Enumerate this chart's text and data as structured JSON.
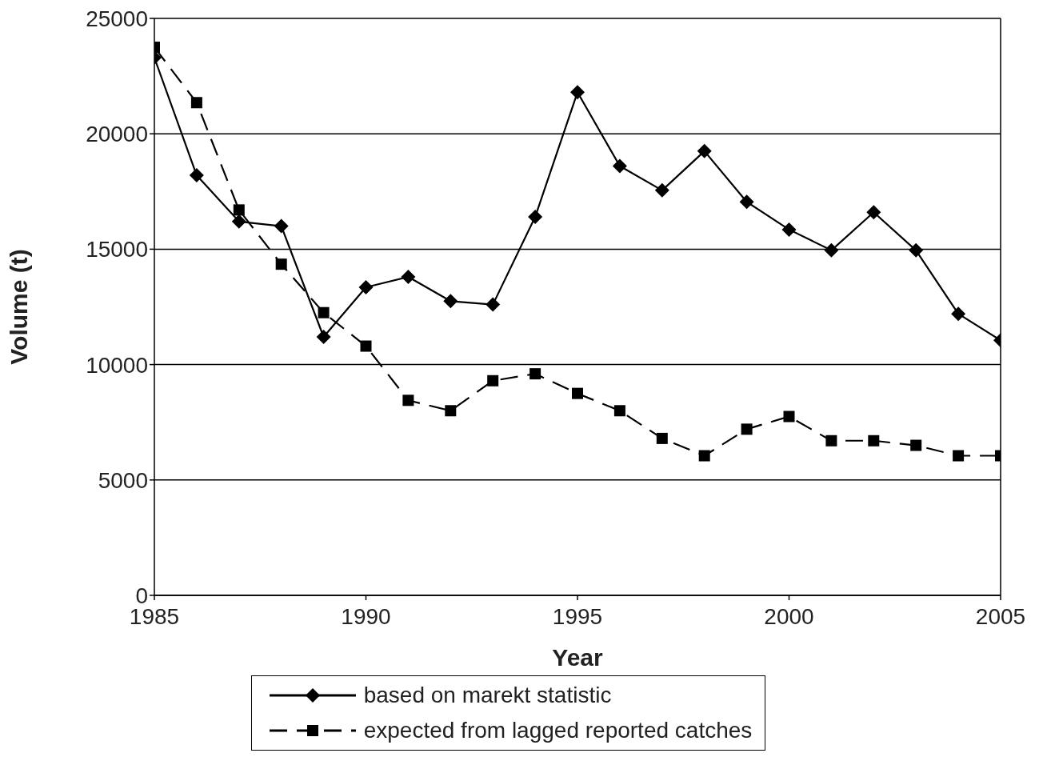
{
  "chart_data": {
    "type": "line",
    "xlabel": "Year",
    "ylabel": "Volume (t)",
    "x": [
      1985,
      1986,
      1987,
      1988,
      1989,
      1990,
      1991,
      1992,
      1993,
      1994,
      1995,
      1996,
      1997,
      1998,
      1999,
      2000,
      2001,
      2002,
      2003,
      2004,
      2005
    ],
    "series": [
      {
        "name": "based on marekt statistic",
        "color": "#000000",
        "marker": "diamond",
        "line_style": "solid",
        "values": [
          23300,
          18200,
          16200,
          16000,
          11200,
          13350,
          13800,
          12750,
          12600,
          16400,
          21800,
          18600,
          17550,
          19250,
          17050,
          15850,
          14950,
          16600,
          14950,
          12200,
          11050
        ]
      },
      {
        "name": "expected from lagged reported catches",
        "color": "#000000",
        "marker": "square",
        "line_style": "dashed",
        "values": [
          23750,
          21350,
          16700,
          14350,
          12250,
          10800,
          8450,
          8000,
          9300,
          9600,
          8750,
          8000,
          6800,
          6050,
          7200,
          7750,
          6700,
          6700,
          6500,
          6050,
          6050
        ]
      }
    ],
    "xlim": [
      1985,
      2005
    ],
    "xticks": [
      1985,
      1990,
      1995,
      2000,
      2005
    ],
    "ylim": [
      0,
      25000
    ],
    "yticks": [
      0,
      5000,
      10000,
      15000,
      20000,
      25000
    ],
    "grid": "y",
    "legend": "bottom"
  }
}
